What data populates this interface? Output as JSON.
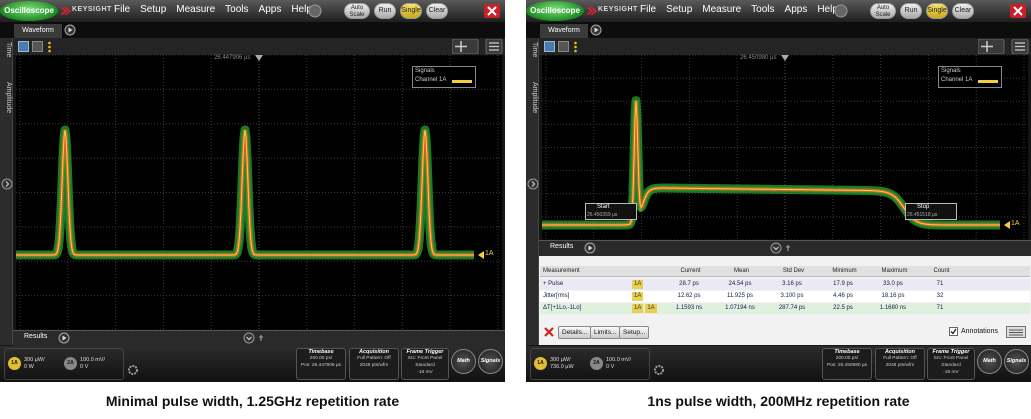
{
  "panels": [
    {
      "app": "Oscilloscope",
      "brand": "KEYSIGHT",
      "menu": [
        "File",
        "Setup",
        "Measure",
        "Tools",
        "Apps",
        "Help"
      ],
      "buttons": [
        "Auto Scale",
        "Run",
        "Single",
        "Clear"
      ],
      "tab": "Waveform",
      "side_tabs": [
        "Time",
        "Amplitude"
      ],
      "marker": "26.447906 µs",
      "legend": {
        "title": "Signals",
        "item": "Channel 1A"
      },
      "channel_marker": "1A",
      "results_tab": "Results",
      "status": {
        "channels": [
          {
            "id": "1A",
            "scale": "300 µW/",
            "offset": "0 W"
          },
          {
            "id": "2A",
            "scale": "100.0 mV/",
            "offset": "0 V"
          }
        ],
        "boxes": [
          {
            "title": "Timebase",
            "lines": [
              "200.00 ps/",
              "Pos: 26.447906 µs"
            ]
          },
          {
            "title": "Acquisition",
            "lines": [
              "Full Pattern: Off",
              "2048 pts/wfm"
            ]
          },
          {
            "title": "Frame Trigger",
            "lines": [
              "Src: Front Panel",
              "Standard",
              "-18 mV"
            ]
          }
        ],
        "round_buttons": [
          "Math",
          "Signals"
        ]
      }
    },
    {
      "app": "Oscilloscope",
      "brand": "KEYSIGHT",
      "menu": [
        "File",
        "Setup",
        "Measure",
        "Tools",
        "Apps",
        "Help"
      ],
      "buttons": [
        "Auto Scale",
        "Run",
        "Single",
        "Clear"
      ],
      "tab": "Waveform",
      "side_tabs": [
        "Time",
        "Amplitude"
      ],
      "marker": "26.450980 µs",
      "legend": {
        "title": "Signals",
        "item": "Channel 1A"
      },
      "channel_marker": "1A",
      "results_tab": "Results",
      "markers": [
        {
          "label": "Start",
          "value": "26.450359 µs"
        },
        {
          "label": "Stop",
          "value": "26.451518 µs"
        }
      ],
      "results": {
        "columns": [
          "Measurement",
          "Current",
          "Mean",
          "Std Dev",
          "Minimum",
          "Maximum",
          "Count"
        ],
        "rows": [
          {
            "name": "+ Pulse",
            "sources": [
              "1A"
            ],
            "values": [
              "28.7 ps",
              "24.54 ps",
              "3.16 ps",
              "17.9 ps",
              "33.0 ps",
              "71"
            ]
          },
          {
            "name": "Jitter[rms]",
            "sources": [
              "1A"
            ],
            "values": [
              "12.62 ps",
              "11.925 ps",
              "3.100 ps",
              "4.46 ps",
              "18.16 ps",
              "32"
            ]
          },
          {
            "name": "ΔT[+1Lo,-1Lo]",
            "sources": [
              "1A",
              "1A"
            ],
            "values": [
              "1.1593 ns",
              "1.07194 ns",
              "287.74 ps",
              "22.5 ps",
              "1.1680 ns",
              "71"
            ]
          }
        ],
        "buttons": [
          "Details...",
          "Limits...",
          "Setup..."
        ],
        "annotations": "Annotations"
      },
      "status": {
        "channels": [
          {
            "id": "1A",
            "scale": "300 µW/",
            "offset": "736.0 µW"
          },
          {
            "id": "2A",
            "scale": "100.0 mV/",
            "offset": "0 V"
          }
        ],
        "boxes": [
          {
            "title": "Timebase",
            "lines": [
              "200.00 ps/",
              "Pos: 26.450980 µs"
            ]
          },
          {
            "title": "Acquisition",
            "lines": [
              "Full Pattern: Off",
              "2048 pts/wfm"
            ]
          },
          {
            "title": "Frame Trigger",
            "lines": [
              "Src: Front Panel",
              "Standard",
              "-18 mV"
            ]
          }
        ],
        "round_buttons": [
          "Math",
          "Signals"
        ]
      }
    }
  ],
  "captions": [
    "Minimal pulse width, 1.25GHz repetition rate",
    "1ns pulse width, 200MHz repetition rate"
  ]
}
